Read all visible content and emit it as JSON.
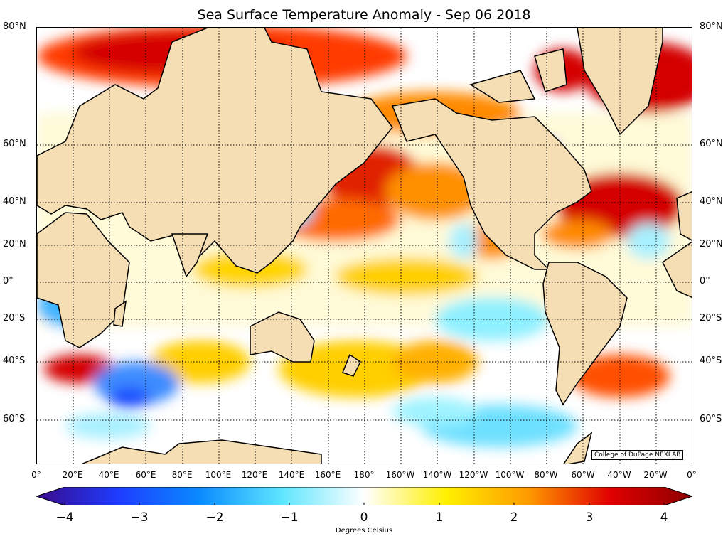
{
  "title": "Sea Surface Temperature Anomaly - Sep 06 2018",
  "map": {
    "projection": "cylindrical (Mercator), centered 180°",
    "lat_labels": [
      "80°N",
      "60°N",
      "40°N",
      "20°N",
      "0°",
      "20°S",
      "40°S",
      "60°S"
    ],
    "lon_labels": [
      "0°",
      "20°E",
      "40°E",
      "60°E",
      "80°E",
      "100°E",
      "120°E",
      "140°E",
      "160°E",
      "180°",
      "160°W",
      "140°W",
      "120°W",
      "100°W",
      "80°W",
      "60°W",
      "40°W",
      "20°W",
      "0°"
    ],
    "land_color": "#f5deb3",
    "grid": true,
    "credit": "College of DuPage NEXLAB"
  },
  "colorbar": {
    "ticks": [
      "−4",
      "−3",
      "−2",
      "−1",
      "0",
      "1",
      "2",
      "3",
      "4"
    ],
    "label": "Degrees Celsius",
    "stops": [
      "#3a0a8c",
      "#1e3cff",
      "#0a8cff",
      "#5fe6ff",
      "#ffffff",
      "#fff000",
      "#ff9a00",
      "#e00000",
      "#8c0000"
    ]
  }
}
